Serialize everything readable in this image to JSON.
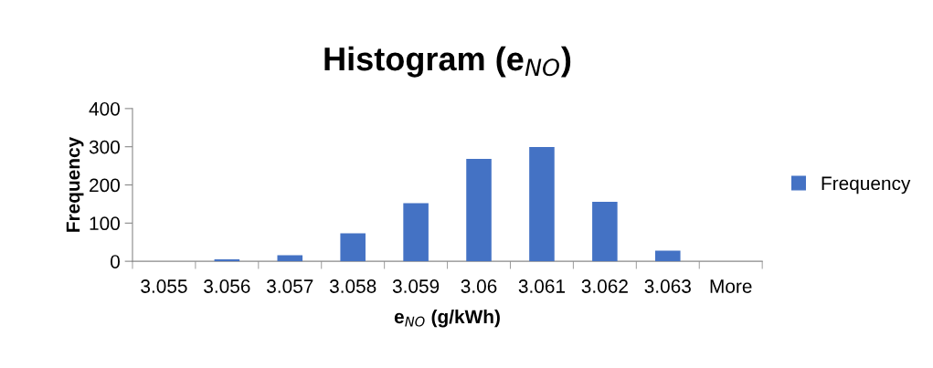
{
  "chart_data": {
    "type": "bar",
    "title": "Histogram (e$_{NO}$)",
    "xlabel": "e$_{NO}$ (g/kWh)",
    "ylabel": "Frequency",
    "categories": [
      "3.055",
      "3.056",
      "3.057",
      "3.058",
      "3.059",
      "3.06",
      "3.061",
      "3.062",
      "3.063",
      "More"
    ],
    "series": [
      {
        "name": "Frequency",
        "color": "#4472c4",
        "values": [
          0,
          5,
          16,
          73,
          152,
          268,
          299,
          156,
          28,
          0
        ]
      }
    ],
    "ylim": [
      0,
      400
    ],
    "yticks": [
      0,
      100,
      200,
      300,
      400
    ],
    "grid": false,
    "legend": "right"
  }
}
